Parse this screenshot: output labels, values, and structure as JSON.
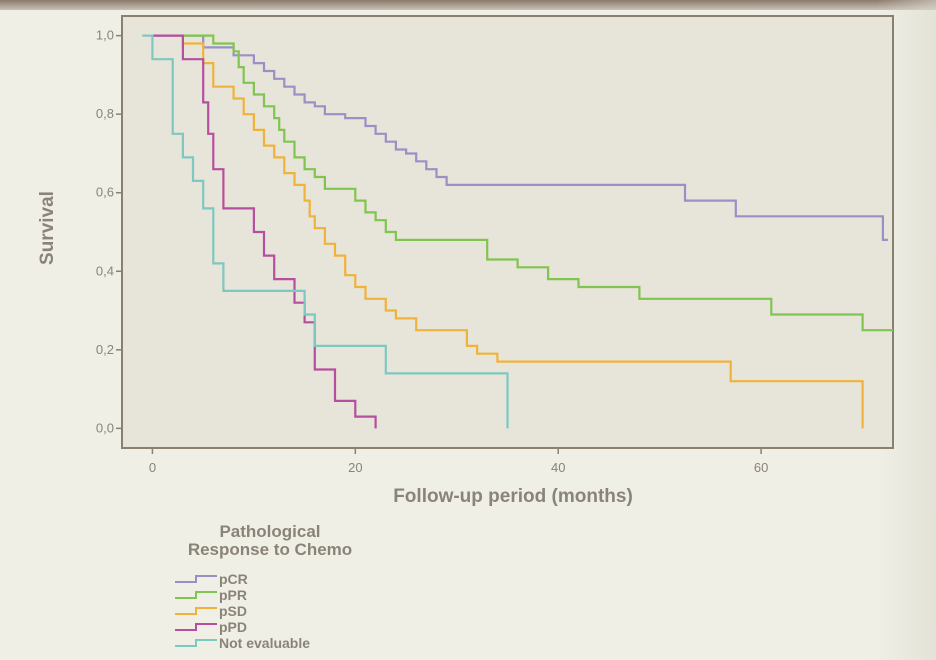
{
  "chart_data": {
    "type": "line",
    "title": "",
    "xlabel": "Follow-up period (months)",
    "ylabel": "Survival",
    "xlim": [
      -3,
      73
    ],
    "ylim": [
      -0.05,
      1.05
    ],
    "x_ticks": [
      0,
      20,
      40,
      60
    ],
    "x_tick_labels": [
      "0",
      "20",
      "40",
      "60"
    ],
    "y_ticks": [
      0,
      0.2,
      0.4,
      0.6,
      0.8,
      1.0
    ],
    "y_tick_labels": [
      "0,0",
      "0,2",
      "0,4",
      "0,6",
      "0,8",
      "1,0"
    ],
    "step": true,
    "legend": {
      "title": [
        "Pathological",
        "Response to Chemo"
      ],
      "position": "bottom-left"
    },
    "series": [
      {
        "name": "pCR",
        "color": "#9a90c6",
        "points": [
          [
            0,
            1.0
          ],
          [
            5,
            1.0
          ],
          [
            5,
            0.97
          ],
          [
            8,
            0.97
          ],
          [
            8,
            0.95
          ],
          [
            10,
            0.95
          ],
          [
            10,
            0.93
          ],
          [
            11,
            0.93
          ],
          [
            11,
            0.91
          ],
          [
            12,
            0.91
          ],
          [
            12,
            0.89
          ],
          [
            13,
            0.89
          ],
          [
            13,
            0.87
          ],
          [
            14,
            0.87
          ],
          [
            14,
            0.85
          ],
          [
            15,
            0.85
          ],
          [
            15,
            0.83
          ],
          [
            16,
            0.83
          ],
          [
            16,
            0.82
          ],
          [
            17,
            0.82
          ],
          [
            17,
            0.8
          ],
          [
            19,
            0.8
          ],
          [
            19,
            0.79
          ],
          [
            21,
            0.79
          ],
          [
            21,
            0.77
          ],
          [
            22,
            0.77
          ],
          [
            22,
            0.75
          ],
          [
            23,
            0.75
          ],
          [
            23,
            0.73
          ],
          [
            24,
            0.73
          ],
          [
            24,
            0.71
          ],
          [
            25,
            0.71
          ],
          [
            25,
            0.7
          ],
          [
            26,
            0.7
          ],
          [
            26,
            0.68
          ],
          [
            27,
            0.68
          ],
          [
            27,
            0.66
          ],
          [
            28,
            0.66
          ],
          [
            28,
            0.64
          ],
          [
            29,
            0.64
          ],
          [
            29,
            0.62
          ],
          [
            52.5,
            0.62
          ],
          [
            52.5,
            0.58
          ],
          [
            57.5,
            0.58
          ],
          [
            57.5,
            0.54
          ],
          [
            72,
            0.54
          ],
          [
            72,
            0.48
          ],
          [
            72.5,
            0.48
          ]
        ]
      },
      {
        "name": "pPR",
        "color": "#80c550",
        "points": [
          [
            3,
            1.0
          ],
          [
            6,
            1.0
          ],
          [
            6,
            0.98
          ],
          [
            8,
            0.98
          ],
          [
            8,
            0.96
          ],
          [
            8.5,
            0.96
          ],
          [
            8.5,
            0.92
          ],
          [
            9,
            0.92
          ],
          [
            9,
            0.88
          ],
          [
            10,
            0.88
          ],
          [
            10,
            0.85
          ],
          [
            11,
            0.85
          ],
          [
            11,
            0.82
          ],
          [
            12,
            0.82
          ],
          [
            12,
            0.79
          ],
          [
            12.5,
            0.79
          ],
          [
            12.5,
            0.76
          ],
          [
            13,
            0.76
          ],
          [
            13,
            0.73
          ],
          [
            14,
            0.73
          ],
          [
            14,
            0.69
          ],
          [
            15,
            0.69
          ],
          [
            15,
            0.66
          ],
          [
            16,
            0.66
          ],
          [
            16,
            0.64
          ],
          [
            17,
            0.64
          ],
          [
            17,
            0.61
          ],
          [
            20,
            0.61
          ],
          [
            20,
            0.58
          ],
          [
            21,
            0.58
          ],
          [
            21,
            0.55
          ],
          [
            22,
            0.55
          ],
          [
            22,
            0.53
          ],
          [
            23,
            0.53
          ],
          [
            23,
            0.5
          ],
          [
            24,
            0.5
          ],
          [
            24,
            0.48
          ],
          [
            33,
            0.48
          ],
          [
            33,
            0.43
          ],
          [
            36,
            0.43
          ],
          [
            36,
            0.41
          ],
          [
            39,
            0.41
          ],
          [
            39,
            0.38
          ],
          [
            42,
            0.38
          ],
          [
            42,
            0.36
          ],
          [
            48,
            0.36
          ],
          [
            48,
            0.33
          ],
          [
            61,
            0.33
          ],
          [
            61,
            0.29
          ],
          [
            70,
            0.29
          ],
          [
            70,
            0.25
          ],
          [
            73,
            0.25
          ]
        ]
      },
      {
        "name": "pSD",
        "color": "#f0b33a",
        "points": [
          [
            2,
            1.0
          ],
          [
            3,
            1.0
          ],
          [
            3,
            0.98
          ],
          [
            5,
            0.98
          ],
          [
            5,
            0.93
          ],
          [
            6,
            0.93
          ],
          [
            6,
            0.87
          ],
          [
            8,
            0.87
          ],
          [
            8,
            0.84
          ],
          [
            9,
            0.84
          ],
          [
            9,
            0.8
          ],
          [
            10,
            0.8
          ],
          [
            10,
            0.76
          ],
          [
            11,
            0.76
          ],
          [
            11,
            0.72
          ],
          [
            12,
            0.72
          ],
          [
            12,
            0.69
          ],
          [
            13,
            0.69
          ],
          [
            13,
            0.65
          ],
          [
            14,
            0.65
          ],
          [
            14,
            0.62
          ],
          [
            15,
            0.62
          ],
          [
            15,
            0.58
          ],
          [
            15.5,
            0.58
          ],
          [
            15.5,
            0.54
          ],
          [
            16,
            0.54
          ],
          [
            16,
            0.51
          ],
          [
            17,
            0.51
          ],
          [
            17,
            0.47
          ],
          [
            18,
            0.47
          ],
          [
            18,
            0.44
          ],
          [
            19,
            0.44
          ],
          [
            19,
            0.39
          ],
          [
            20,
            0.39
          ],
          [
            20,
            0.36
          ],
          [
            21,
            0.36
          ],
          [
            21,
            0.33
          ],
          [
            23,
            0.33
          ],
          [
            23,
            0.3
          ],
          [
            24,
            0.3
          ],
          [
            24,
            0.28
          ],
          [
            26,
            0.28
          ],
          [
            26,
            0.25
          ],
          [
            31,
            0.25
          ],
          [
            31,
            0.21
          ],
          [
            32,
            0.21
          ],
          [
            32,
            0.19
          ],
          [
            34,
            0.19
          ],
          [
            34,
            0.17
          ],
          [
            57,
            0.17
          ],
          [
            57,
            0.12
          ],
          [
            70,
            0.12
          ],
          [
            70,
            0.0
          ]
        ]
      },
      {
        "name": "pPD",
        "color": "#b64fa0",
        "points": [
          [
            0,
            1.0
          ],
          [
            3,
            1.0
          ],
          [
            3,
            0.94
          ],
          [
            5,
            0.94
          ],
          [
            5,
            0.83
          ],
          [
            5.5,
            0.83
          ],
          [
            5.5,
            0.75
          ],
          [
            6,
            0.75
          ],
          [
            6,
            0.66
          ],
          [
            7,
            0.66
          ],
          [
            7,
            0.56
          ],
          [
            10,
            0.56
          ],
          [
            10,
            0.5
          ],
          [
            11,
            0.5
          ],
          [
            11,
            0.44
          ],
          [
            12,
            0.44
          ],
          [
            12,
            0.38
          ],
          [
            14,
            0.38
          ],
          [
            14,
            0.32
          ],
          [
            15,
            0.32
          ],
          [
            15,
            0.27
          ],
          [
            16,
            0.27
          ],
          [
            16,
            0.15
          ],
          [
            18,
            0.15
          ],
          [
            18,
            0.07
          ],
          [
            20,
            0.07
          ],
          [
            20,
            0.03
          ],
          [
            22,
            0.03
          ],
          [
            22,
            0.0
          ]
        ]
      },
      {
        "name": "Not evaluable",
        "color": "#7dc8c0",
        "points": [
          [
            -1,
            1.0
          ],
          [
            0,
            1.0
          ],
          [
            0,
            0.94
          ],
          [
            2,
            0.94
          ],
          [
            2,
            0.75
          ],
          [
            3,
            0.75
          ],
          [
            3,
            0.69
          ],
          [
            4,
            0.69
          ],
          [
            4,
            0.63
          ],
          [
            5,
            0.63
          ],
          [
            5,
            0.56
          ],
          [
            6,
            0.56
          ],
          [
            6,
            0.42
          ],
          [
            7,
            0.42
          ],
          [
            7,
            0.35
          ],
          [
            15,
            0.35
          ],
          [
            15,
            0.29
          ],
          [
            16,
            0.29
          ],
          [
            16,
            0.21
          ],
          [
            23,
            0.21
          ],
          [
            23,
            0.14
          ],
          [
            35,
            0.14
          ],
          [
            35,
            0.0
          ]
        ]
      }
    ]
  }
}
